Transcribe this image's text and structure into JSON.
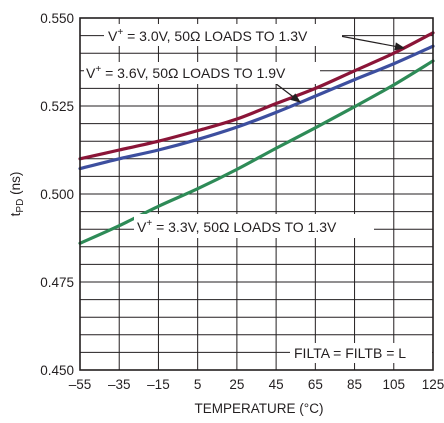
{
  "chart_data": {
    "type": "line",
    "xlabel": "TEMPERATURE (°C)",
    "ylabel_main": "t",
    "ylabel_sub": "PD",
    "ylabel_unit": " (ns)",
    "xlim": [
      -55,
      125
    ],
    "ylim": [
      0.45,
      0.55
    ],
    "x_ticks": [
      -55,
      -35,
      -15,
      5,
      25,
      45,
      65,
      85,
      105,
      125
    ],
    "x_tick_labels": [
      "–55",
      "–35",
      "–15",
      "5",
      "25",
      "45",
      "65",
      "85",
      "105",
      "125"
    ],
    "y_ticks": [
      0.45,
      0.475,
      0.5,
      0.525,
      0.55
    ],
    "y_tick_labels": [
      "0.450",
      "0.475",
      "0.500",
      "0.525",
      "0.550"
    ],
    "grid": true,
    "x": [
      -55,
      -35,
      -15,
      5,
      25,
      45,
      65,
      85,
      105,
      125
    ],
    "series": [
      {
        "name": "V+ = 3.0V, 50Ω LOADS TO 1.3V",
        "color": "#8b1538",
        "values": [
          0.51,
          0.5125,
          0.515,
          0.518,
          0.5213,
          0.5257,
          0.53,
          0.535,
          0.54,
          0.5458
        ]
      },
      {
        "name": "V+ = 3.6V, 50Ω LOADS TO 1.9V",
        "color": "#3d4f9f",
        "values": [
          0.5072,
          0.51,
          0.5125,
          0.5155,
          0.519,
          0.5232,
          0.5278,
          0.5325,
          0.537,
          0.542
        ]
      },
      {
        "name": "V+ = 3.3V, 50Ω LOADS TO 1.3V",
        "color": "#2e8b57",
        "values": [
          0.486,
          0.491,
          0.4965,
          0.5015,
          0.507,
          0.513,
          0.5188,
          0.5248,
          0.531,
          0.5378
        ]
      }
    ],
    "annotations": {
      "s1": {
        "v": "V",
        "sup": "+",
        "rest": " = 3.0V, 50Ω LOADS TO 1.3V"
      },
      "s2": {
        "v": "V",
        "sup": "+",
        "rest": " = 3.6V, 50Ω LOADS TO 1.9V"
      },
      "s3": {
        "v": "V",
        "sup": "+",
        "rest": " = 3.3V, 50Ω LOADS TO 1.3V"
      },
      "condition": "FILTA = FILTB = L"
    }
  }
}
